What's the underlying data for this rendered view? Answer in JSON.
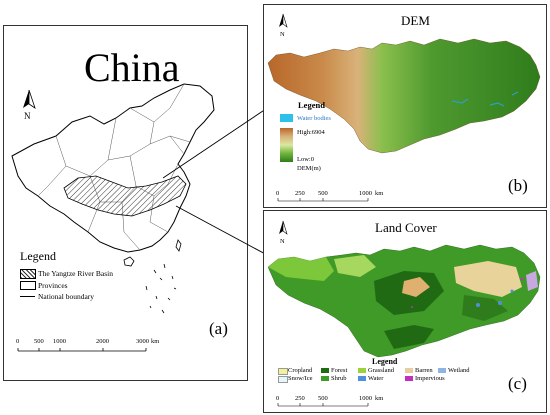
{
  "panel_a": {
    "title": "China",
    "north": "N",
    "legend_title": "Legend",
    "legend_items": [
      "The Yangtze River Basin",
      "Provinces",
      "National boundary"
    ],
    "scale_ticks": [
      "0",
      "500",
      "1000",
      "2000",
      "3000"
    ],
    "scale_unit": "km",
    "letter": "(a)"
  },
  "panel_b": {
    "title": "DEM",
    "north": "N",
    "legend_title": "Legend",
    "water_label": "Water bodies",
    "high_label": "High:6904",
    "low_label": "Low:0",
    "unit_label": "DEM(m)",
    "scale_ticks": [
      "0",
      "250",
      "500",
      "1000"
    ],
    "scale_unit": "km",
    "letter": "(b)"
  },
  "panel_c": {
    "title": "Land Cover",
    "north": "N",
    "legend_title": "Legend",
    "classes": [
      {
        "label": "Cropland",
        "color": "#f2f29c"
      },
      {
        "label": "Forest",
        "color": "#1f6a12"
      },
      {
        "label": "Grassland",
        "color": "#9bd23a"
      },
      {
        "label": "Barren",
        "color": "#e8cda0"
      },
      {
        "label": "Wetland",
        "color": "#8fb3e6"
      },
      {
        "label": "Snow/Ice",
        "color": "#e6f7fb"
      },
      {
        "label": "Shrub",
        "color": "#3f9a27"
      },
      {
        "label": "Water",
        "color": "#4f8fe0"
      },
      {
        "label": "Impervious",
        "color": "#c030c0"
      }
    ],
    "scale_ticks": [
      "0",
      "250",
      "500",
      "1000"
    ],
    "scale_unit": "km",
    "letter": "(c)"
  }
}
